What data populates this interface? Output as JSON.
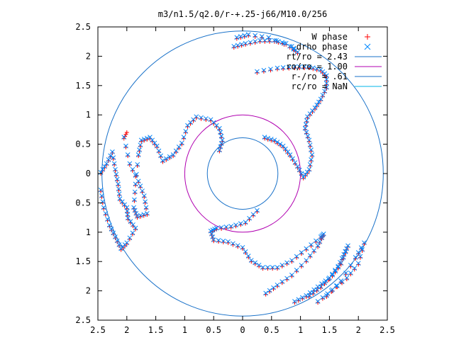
{
  "chart_data": {
    "type": "scatter",
    "title": "m3/n1.5/q2.0/r-+.25-j66/M10.0/256",
    "xlim": [
      -2.5,
      2.5
    ],
    "ylim": [
      -2.5,
      2.5
    ],
    "x_tick_labels": [
      "2.5",
      "2",
      "1.5",
      "1",
      "0.5",
      "0",
      "0.5",
      "1",
      "1.5",
      "2",
      "2.5"
    ],
    "y_tick_labels": [
      "2.5",
      "2",
      "1.5",
      "1",
      "0.5",
      "0",
      "0.5",
      "1",
      "1.5",
      "2",
      "2.5"
    ],
    "grid": false,
    "legend_position": "top-right",
    "legend": [
      {
        "label": "W phase",
        "symbol": "plus",
        "color": "#ff0000"
      },
      {
        "label": "drho phase",
        "symbol": "cross",
        "color": "#0088ff"
      },
      {
        "label": "rt/ro = 2.43",
        "symbol": "line",
        "color": "#1a72c9"
      },
      {
        "label": "ro/ro = 1.00",
        "symbol": "line",
        "color": "#b000b0"
      },
      {
        "label": "r-/ro = .61",
        "symbol": "line",
        "color": "#1a72c9"
      },
      {
        "label": "rc/ro = NaN",
        "symbol": "line",
        "color": "#00b5e8"
      }
    ],
    "circles": [
      {
        "r": 2.43,
        "color": "#1a72c9"
      },
      {
        "r": 1.0,
        "color": "#b000b0"
      },
      {
        "r": 0.61,
        "color": "#1a72c9"
      }
    ],
    "series": [
      {
        "name": "W phase",
        "color": "#ff0000",
        "marker": "plus",
        "arms": [
          [
            [
              0.38,
              0.6
            ],
            [
              0.55,
              0.55
            ],
            [
              0.7,
              0.45
            ],
            [
              0.82,
              0.3
            ],
            [
              0.95,
              0.1
            ],
            [
              1.05,
              -0.08
            ],
            [
              1.15,
              0.05
            ],
            [
              1.2,
              0.3
            ],
            [
              1.15,
              0.55
            ],
            [
              1.08,
              0.75
            ],
            [
              1.12,
              0.95
            ],
            [
              1.25,
              1.1
            ],
            [
              1.35,
              1.25
            ],
            [
              1.45,
              1.45
            ],
            [
              1.45,
              1.65
            ],
            [
              1.35,
              1.75
            ],
            [
              1.15,
              1.8
            ],
            [
              0.9,
              1.8
            ],
            [
              0.6,
              1.78
            ],
            [
              0.25,
              1.72
            ]
          ],
          [
            [
              -0.4,
              0.38
            ],
            [
              -0.35,
              0.55
            ],
            [
              -0.4,
              0.75
            ],
            [
              -0.55,
              0.9
            ],
            [
              -0.8,
              0.95
            ],
            [
              -0.95,
              0.8
            ],
            [
              -1.05,
              0.5
            ],
            [
              -1.2,
              0.3
            ],
            [
              -1.38,
              0.2
            ],
            [
              -1.48,
              0.45
            ],
            [
              -1.6,
              0.6
            ],
            [
              -1.75,
              0.55
            ],
            [
              -1.8,
              0.3
            ],
            [
              -1.85,
              -0.2
            ],
            [
              -1.88,
              -0.6
            ],
            [
              -1.82,
              -0.75
            ],
            [
              -1.65,
              -0.7
            ],
            [
              -1.7,
              -0.4
            ],
            [
              -1.8,
              -0.15
            ],
            [
              -1.95,
              0.15
            ],
            [
              -2.05,
              0.6
            ],
            [
              -2.0,
              0.7
            ]
          ],
          [
            [
              0.25,
              -0.65
            ],
            [
              0.05,
              -0.85
            ],
            [
              -0.2,
              -0.92
            ],
            [
              -0.45,
              -0.95
            ],
            [
              -0.55,
              -1.0
            ],
            [
              -0.5,
              -1.15
            ],
            [
              -0.25,
              -1.18
            ],
            [
              0.0,
              -1.28
            ],
            [
              0.15,
              -1.5
            ],
            [
              0.35,
              -1.62
            ],
            [
              0.6,
              -1.62
            ],
            [
              0.85,
              -1.5
            ],
            [
              1.1,
              -1.3
            ],
            [
              1.35,
              -1.1
            ],
            [
              1.4,
              -1.05
            ],
            [
              1.3,
              -1.25
            ],
            [
              1.1,
              -1.5
            ],
            [
              0.85,
              -1.75
            ],
            [
              0.6,
              -1.92
            ],
            [
              0.4,
              -2.06
            ]
          ],
          [
            [
              -2.45,
              0.0
            ],
            [
              -2.35,
              0.15
            ],
            [
              -2.25,
              0.35
            ],
            [
              -2.2,
              0.05
            ],
            [
              -2.15,
              -0.2
            ],
            [
              -2.12,
              -0.45
            ],
            [
              -2.0,
              -0.6
            ],
            [
              -1.98,
              -0.78
            ],
            [
              -1.85,
              -0.95
            ],
            [
              -2.0,
              -1.2
            ],
            [
              -2.1,
              -1.3
            ],
            [
              -2.2,
              -1.1
            ],
            [
              -2.3,
              -0.9
            ],
            [
              -2.4,
              -0.6
            ],
            [
              -2.45,
              -0.3
            ]
          ],
          [
            [
              0.9,
              -2.2
            ],
            [
              1.1,
              -2.1
            ],
            [
              1.3,
              -1.95
            ],
            [
              1.5,
              -1.8
            ],
            [
              1.65,
              -1.6
            ],
            [
              1.75,
              -1.4
            ],
            [
              1.82,
              -1.25
            ],
            [
              1.7,
              -1.55
            ],
            [
              1.55,
              -1.75
            ],
            [
              1.35,
              -1.95
            ],
            [
              1.15,
              -2.1
            ]
          ],
          [
            [
              1.3,
              -2.2
            ],
            [
              1.55,
              -2.0
            ],
            [
              1.8,
              -1.8
            ],
            [
              2.0,
              -1.55
            ],
            [
              2.1,
              -1.2
            ],
            [
              1.95,
              -1.45
            ],
            [
              1.7,
              -1.85
            ],
            [
              1.45,
              -2.1
            ]
          ],
          [
            [
              -0.15,
              2.15
            ],
            [
              0.05,
              2.2
            ],
            [
              0.3,
              2.25
            ],
            [
              0.55,
              2.25
            ],
            [
              0.75,
              2.2
            ],
            [
              0.95,
              2.05
            ],
            [
              0.85,
              2.15
            ],
            [
              0.45,
              2.3
            ],
            [
              0.1,
              2.35
            ],
            [
              -0.1,
              2.3
            ]
          ]
        ]
      },
      {
        "name": "drho phase",
        "color": "#0088ff",
        "marker": "cross",
        "arms": [
          [
            [
              0.38,
              0.62
            ],
            [
              0.55,
              0.57
            ],
            [
              0.7,
              0.47
            ],
            [
              0.82,
              0.32
            ],
            [
              0.95,
              0.12
            ],
            [
              1.05,
              -0.06
            ],
            [
              1.15,
              0.07
            ],
            [
              1.2,
              0.32
            ],
            [
              1.15,
              0.57
            ],
            [
              1.08,
              0.77
            ],
            [
              1.12,
              0.97
            ],
            [
              1.25,
              1.12
            ],
            [
              1.35,
              1.27
            ],
            [
              1.45,
              1.47
            ],
            [
              1.45,
              1.67
            ],
            [
              1.35,
              1.77
            ],
            [
              1.15,
              1.82
            ],
            [
              0.9,
              1.82
            ],
            [
              0.6,
              1.8
            ],
            [
              0.25,
              1.74
            ]
          ],
          [
            [
              -0.4,
              0.4
            ],
            [
              -0.35,
              0.57
            ],
            [
              -0.4,
              0.77
            ],
            [
              -0.55,
              0.92
            ],
            [
              -0.8,
              0.97
            ],
            [
              -0.95,
              0.82
            ],
            [
              -1.05,
              0.52
            ],
            [
              -1.2,
              0.32
            ],
            [
              -1.38,
              0.22
            ],
            [
              -1.48,
              0.47
            ],
            [
              -1.6,
              0.62
            ],
            [
              -1.75,
              0.57
            ],
            [
              -1.8,
              0.32
            ],
            [
              -1.85,
              -0.18
            ],
            [
              -1.88,
              -0.58
            ],
            [
              -1.82,
              -0.73
            ],
            [
              -1.65,
              -0.68
            ],
            [
              -1.7,
              -0.38
            ],
            [
              -1.8,
              -0.13
            ],
            [
              -1.95,
              0.17
            ],
            [
              -2.05,
              0.62
            ]
          ],
          [
            [
              0.25,
              -0.63
            ],
            [
              0.05,
              -0.83
            ],
            [
              -0.2,
              -0.9
            ],
            [
              -0.45,
              -0.93
            ],
            [
              -0.55,
              -0.98
            ],
            [
              -0.5,
              -1.13
            ],
            [
              -0.25,
              -1.16
            ],
            [
              0.0,
              -1.26
            ],
            [
              0.15,
              -1.48
            ],
            [
              0.35,
              -1.6
            ],
            [
              0.6,
              -1.6
            ],
            [
              0.85,
              -1.48
            ],
            [
              1.1,
              -1.28
            ],
            [
              1.35,
              -1.08
            ],
            [
              1.4,
              -1.03
            ],
            [
              1.3,
              -1.23
            ],
            [
              1.1,
              -1.48
            ],
            [
              0.85,
              -1.73
            ],
            [
              0.6,
              -1.9
            ],
            [
              0.4,
              -2.04
            ]
          ],
          [
            [
              -2.45,
              0.02
            ],
            [
              -2.35,
              0.17
            ],
            [
              -2.25,
              0.37
            ],
            [
              -2.2,
              0.07
            ],
            [
              -2.15,
              -0.18
            ],
            [
              -2.12,
              -0.43
            ],
            [
              -2.0,
              -0.58
            ],
            [
              -1.98,
              -0.76
            ],
            [
              -1.85,
              -0.93
            ],
            [
              -2.0,
              -1.18
            ],
            [
              -2.1,
              -1.28
            ],
            [
              -2.2,
              -1.08
            ],
            [
              -2.3,
              -0.88
            ],
            [
              -2.4,
              -0.58
            ],
            [
              -2.45,
              -0.28
            ]
          ],
          [
            [
              0.9,
              -2.18
            ],
            [
              1.1,
              -2.08
            ],
            [
              1.3,
              -1.93
            ],
            [
              1.5,
              -1.78
            ],
            [
              1.65,
              -1.58
            ],
            [
              1.75,
              -1.38
            ],
            [
              1.82,
              -1.23
            ],
            [
              1.7,
              -1.53
            ],
            [
              1.55,
              -1.73
            ],
            [
              1.35,
              -1.93
            ],
            [
              1.15,
              -2.08
            ]
          ],
          [
            [
              1.3,
              -2.18
            ],
            [
              1.55,
              -1.98
            ],
            [
              1.8,
              -1.78
            ],
            [
              2.0,
              -1.53
            ],
            [
              2.1,
              -1.18
            ],
            [
              1.95,
              -1.43
            ],
            [
              1.7,
              -1.83
            ],
            [
              1.45,
              -2.08
            ]
          ],
          [
            [
              -0.15,
              2.17
            ],
            [
              0.05,
              2.22
            ],
            [
              0.3,
              2.27
            ],
            [
              0.55,
              2.27
            ],
            [
              0.75,
              2.22
            ],
            [
              0.95,
              2.07
            ],
            [
              0.85,
              2.17
            ],
            [
              0.45,
              2.32
            ],
            [
              0.1,
              2.37
            ],
            [
              -0.1,
              2.32
            ]
          ]
        ]
      }
    ]
  }
}
